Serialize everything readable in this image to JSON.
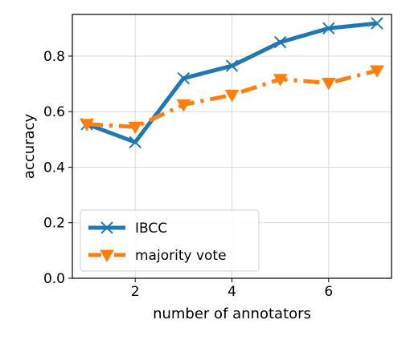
{
  "chart_data": {
    "type": "line",
    "title": "",
    "xlabel": "number of annotators",
    "ylabel": "accuracy",
    "xlim": [
      0.7,
      7.3
    ],
    "ylim": [
      0.0,
      0.95
    ],
    "xticks": [
      2,
      4,
      6
    ],
    "xtick_labels": [
      "2",
      "4",
      "6"
    ],
    "yticks": [
      0.0,
      0.2,
      0.4,
      0.6,
      0.8
    ],
    "ytick_labels": [
      "0.0",
      "0.2",
      "0.4",
      "0.6",
      "0.8"
    ],
    "grid": true,
    "legend_position": "lower-left",
    "x": [
      1,
      2,
      3,
      4,
      5,
      6,
      7
    ],
    "series": [
      {
        "name": "IBCC",
        "values": [
          0.555,
          0.49,
          0.72,
          0.765,
          0.85,
          0.9,
          0.918
        ],
        "color": "#1f77b4",
        "marker": "x",
        "linestyle": "solid"
      },
      {
        "name": "majority vote",
        "values": [
          0.555,
          0.545,
          0.625,
          0.66,
          0.717,
          0.703,
          0.748
        ],
        "color": "#ff7f0e",
        "marker": "triangle-down",
        "linestyle": "dashdot"
      }
    ]
  }
}
